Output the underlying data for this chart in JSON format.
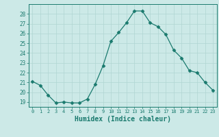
{
  "x": [
    0,
    1,
    2,
    3,
    4,
    5,
    6,
    7,
    8,
    9,
    10,
    11,
    12,
    13,
    14,
    15,
    16,
    17,
    18,
    19,
    20,
    21,
    22,
    23
  ],
  "y": [
    21.1,
    20.7,
    19.7,
    18.9,
    19.0,
    18.9,
    18.9,
    19.3,
    20.8,
    22.7,
    25.2,
    26.1,
    27.1,
    28.3,
    28.3,
    27.1,
    26.7,
    25.9,
    24.3,
    23.5,
    22.2,
    22.0,
    21.0,
    20.2
  ],
  "line_color": "#1a7a6e",
  "marker": "D",
  "marker_size": 2.5,
  "bg_color": "#cce9e7",
  "grid_color": "#b0d5d2",
  "tick_color": "#1a7a6e",
  "xlabel": "Humidex (Indice chaleur)",
  "xlabel_fontsize": 7,
  "ylim": [
    18.5,
    29.0
  ],
  "xlim": [
    -0.5,
    23.5
  ],
  "yticks": [
    19,
    20,
    21,
    22,
    23,
    24,
    25,
    26,
    27,
    28
  ],
  "xticks": [
    0,
    1,
    2,
    3,
    4,
    5,
    6,
    7,
    8,
    9,
    10,
    11,
    12,
    13,
    14,
    15,
    16,
    17,
    18,
    19,
    20,
    21,
    22,
    23
  ]
}
